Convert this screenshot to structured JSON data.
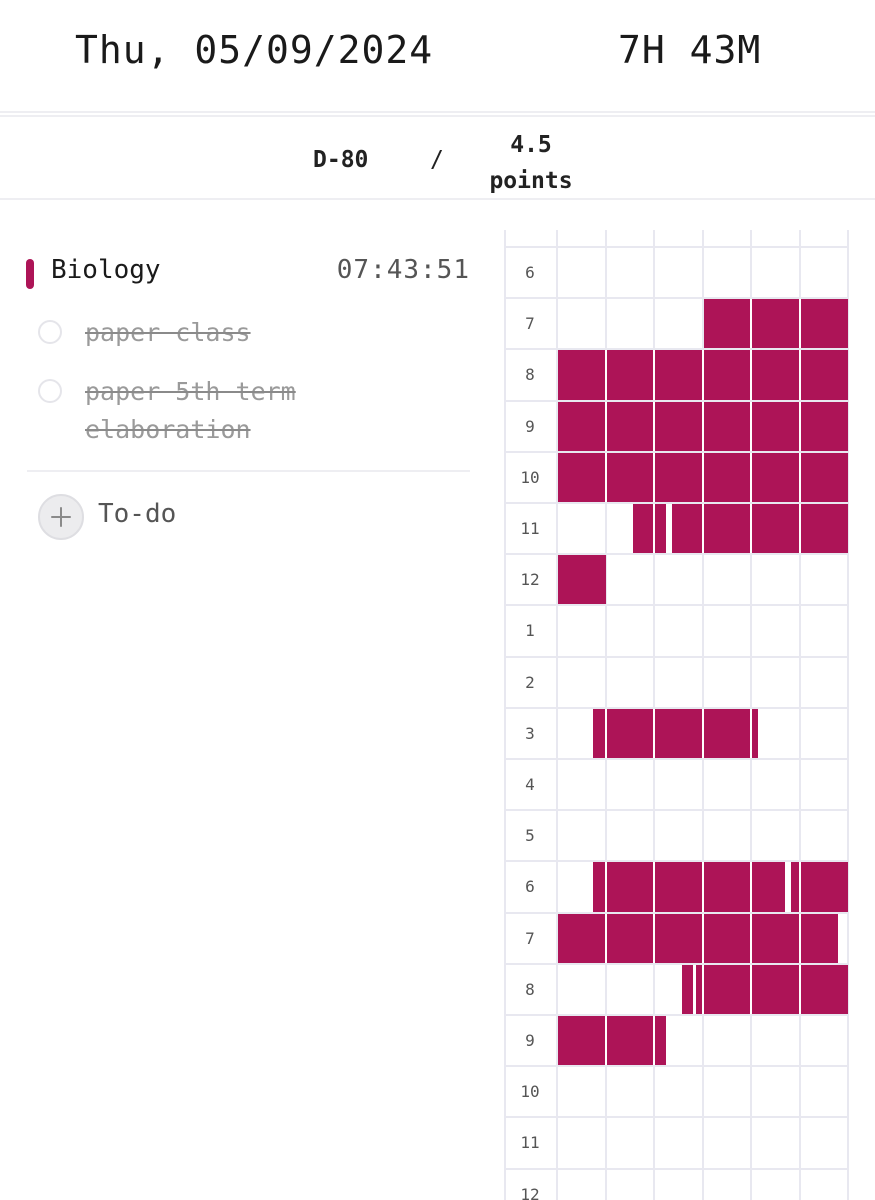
{
  "header": {
    "date": "Thu, 05/09/2024",
    "total_time": "7H 43M"
  },
  "stats": {
    "dday": "D-80",
    "separator": "/",
    "points_value": "4.5",
    "points_label": "points"
  },
  "subject": {
    "name": "Biology",
    "time": "07:43:51",
    "color": "#ad1457"
  },
  "todos": [
    {
      "text": "paper class",
      "done": true
    },
    {
      "text": "paper 5th term elaboration",
      "done": true
    }
  ],
  "add_todo": {
    "icon": "plus-icon",
    "label": "To-do"
  },
  "timetable": {
    "color": "#ad1457",
    "slots_per_hour": 6,
    "hours": [
      "6",
      "7",
      "8",
      "9",
      "10",
      "11",
      "12",
      "1",
      "2",
      "3",
      "4",
      "5",
      "6",
      "7",
      "8",
      "9",
      "10",
      "11",
      "12"
    ],
    "sessions": [
      {
        "hour_index": 1,
        "start": 3.0,
        "end": 6.0
      },
      {
        "hour_index": 2,
        "start": 0.0,
        "end": 6.0
      },
      {
        "hour_index": 3,
        "start": 0.0,
        "end": 6.0
      },
      {
        "hour_index": 4,
        "start": 0.0,
        "end": 6.0
      },
      {
        "hour_index": 5,
        "start": 1.55,
        "end": 2.25
      },
      {
        "hour_index": 5,
        "start": 2.35,
        "end": 6.0
      },
      {
        "hour_index": 6,
        "start": 0.0,
        "end": 1.0
      },
      {
        "hour_index": 9,
        "start": 0.72,
        "end": 4.15
      },
      {
        "hour_index": 12,
        "start": 0.72,
        "end": 4.7
      },
      {
        "hour_index": 12,
        "start": 4.8,
        "end": 6.0
      },
      {
        "hour_index": 13,
        "start": 0.0,
        "end": 5.8
      },
      {
        "hour_index": 14,
        "start": 2.55,
        "end": 2.8
      },
      {
        "hour_index": 14,
        "start": 2.85,
        "end": 6.0
      },
      {
        "hour_index": 15,
        "start": 0.0,
        "end": 2.25
      }
    ]
  }
}
